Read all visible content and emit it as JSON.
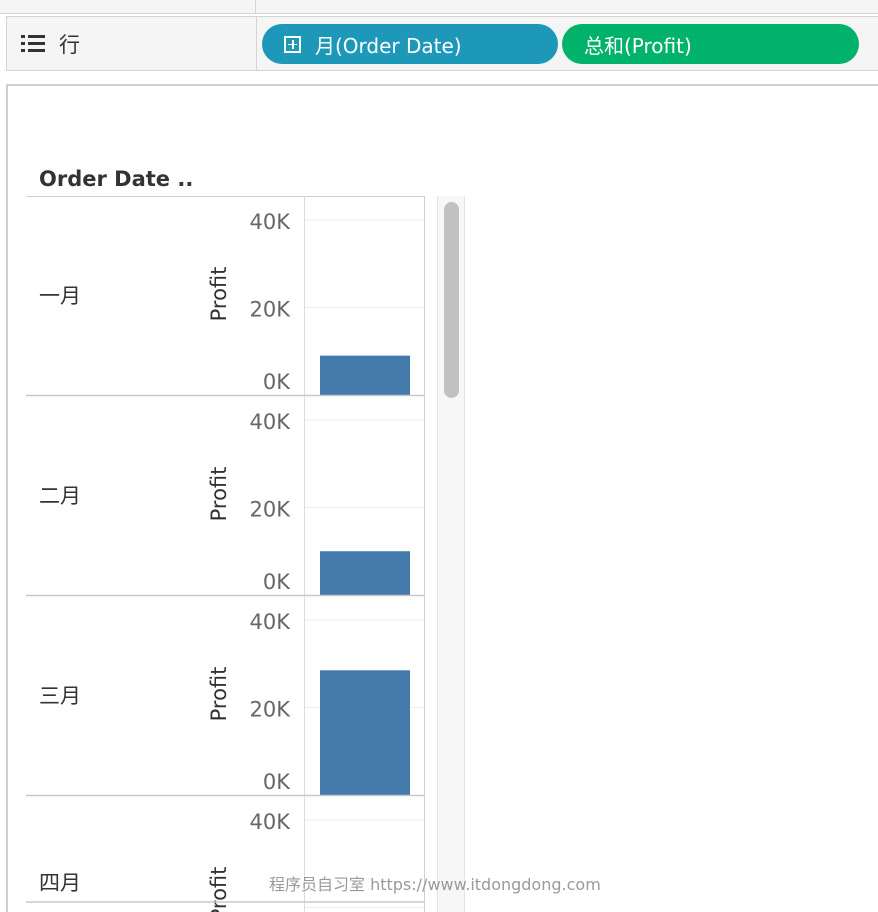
{
  "rows_shelf": {
    "label": "行",
    "pills": [
      {
        "label": "月(Order Date)",
        "color": "#1e98b9"
      },
      {
        "label": "总和(Profit)",
        "color": "#00b26a"
      }
    ]
  },
  "column_header": "Order Date ..",
  "watermark": "程序员自习室 https://www.itdongdong.com",
  "chart_data": {
    "type": "bar",
    "orientation": "vertical",
    "categories": [
      "一月",
      "二月",
      "三月",
      "四月"
    ],
    "measure_label": "Profit",
    "y_ticks": [
      "0K",
      "20K",
      "40K"
    ],
    "ylim": [
      0,
      40000
    ],
    "series": [
      {
        "values": [
          9000,
          10000,
          28500,
          null
        ]
      }
    ],
    "bar_color": "#4379ab",
    "grid": true
  }
}
